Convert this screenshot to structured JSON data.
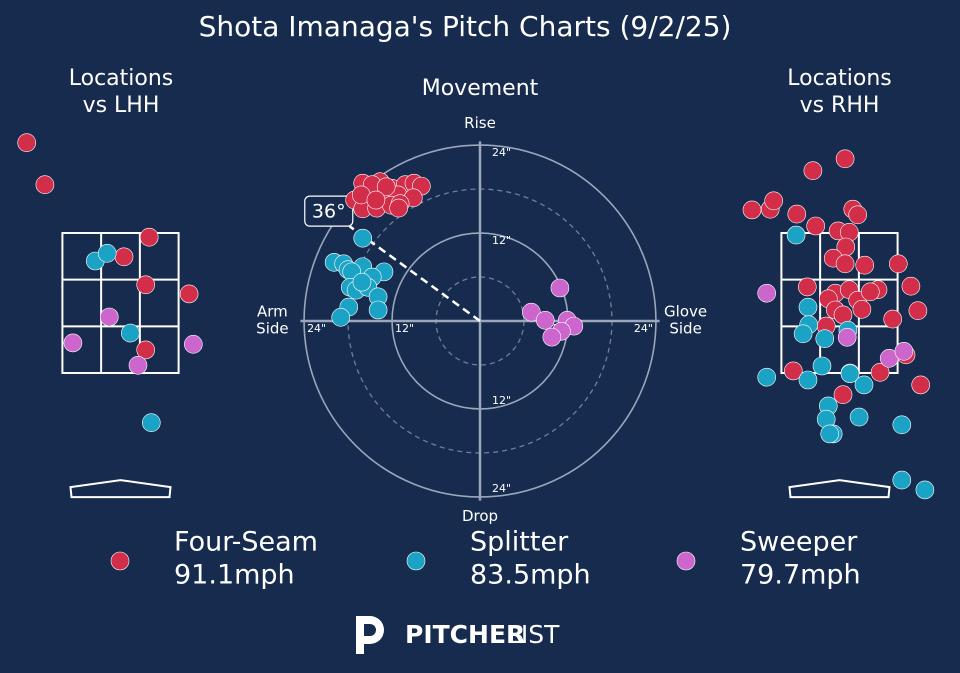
{
  "title": "Shota Imanaga's Pitch Charts (9/2/25)",
  "legend": [
    {
      "name": "Four-Seam",
      "speed": "91.1mph",
      "color": "#d22d49"
    },
    {
      "name": "Splitter",
      "speed": "83.5mph",
      "color": "#1ba3c6"
    },
    {
      "name": "Sweeper",
      "speed": "79.7mph",
      "color": "#cc66cc"
    }
  ],
  "logo": {
    "bold": "PITCHER",
    "light": "LIST"
  },
  "chart_data": [
    {
      "type": "scatter",
      "title": [
        "Locations",
        "vs LHH"
      ],
      "xlim": [
        -1.7,
        1.7
      ],
      "ylim": [
        -0.5,
        5
      ],
      "series": [
        {
          "x": [
            -1.34,
            -1.08,
            0.41,
            0.05,
            0.36,
            0.98,
            0.36
          ],
          "values": [
            4.79,
            4.19,
            3.44,
            3.16,
            2.76,
            2.63,
            1.83
          ]
        },
        {
          "x": [
            -0.36,
            -0.19,
            0.14,
            0.44
          ],
          "values": [
            3.1,
            3.21,
            2.07,
            0.79
          ]
        },
        {
          "x": [
            -0.16,
            -0.68,
            1.04,
            0.25
          ],
          "values": [
            2.3,
            1.93,
            1.91,
            1.61
          ]
        }
      ]
    },
    {
      "type": "movement",
      "title": [
        "Movement"
      ],
      "xlim": [
        -24.5,
        24.5
      ],
      "ylim": [
        -24.5,
        24.5
      ],
      "axis_labels": {
        "top": [
          "Rise"
        ],
        "bottom": [
          "Drop"
        ],
        "left": [
          "Arm",
          "Side"
        ],
        "right": [
          "Glove",
          "Side"
        ]
      },
      "ticks": [
        {
          "value": 12,
          "label": "12\""
        },
        {
          "value": 24,
          "label": "24\""
        }
      ],
      "minor_ticks": [
        6,
        18
      ],
      "annotation": {
        "value": 36,
        "label": "36°"
      },
      "series": [
        {
          "x": [
            -16.0,
            -13.6,
            -12.0,
            -10.2,
            -9.0,
            -8.0,
            -17.1,
            -15.3,
            -13.4,
            -11.2,
            -9.1,
            -16.0,
            -14.1,
            -12.1,
            -10.9,
            -14.7,
            -12.8,
            -16.2,
            -14.2,
            -11.1
          ],
          "values": [
            18.8,
            19.0,
            18.1,
            18.6,
            18.8,
            18.4,
            16.5,
            17.1,
            17.6,
            17.2,
            16.8,
            15.3,
            15.4,
            15.8,
            16.0,
            18.6,
            18.3,
            17.2,
            16.5,
            15.4
          ]
        },
        {
          "x": [
            -16.0,
            -19.9,
            -18.6,
            -18.0,
            -16.0,
            -17.5,
            -13.1,
            -14.7,
            -17.7,
            -16.9,
            -15.3,
            -13.9,
            -17.9,
            -19.0,
            -13.9,
            -16.1
          ],
          "values": [
            11.3,
            8.0,
            7.8,
            7.0,
            7.4,
            6.7,
            6.7,
            6.0,
            4.6,
            4.2,
            4.6,
            3.3,
            1.9,
            0.5,
            1.5,
            5.3
          ]
        },
        {
          "x": [
            10.9,
            7.0,
            8.9,
            11.9,
            12.8,
            11.1,
            9.8
          ],
          "values": [
            4.5,
            1.2,
            0.1,
            0.1,
            -0.7,
            -1.4,
            -2.2
          ]
        }
      ]
    },
    {
      "type": "scatter",
      "title": [
        "Locations",
        "vs RHH"
      ],
      "xlim": [
        -1.7,
        1.7
      ],
      "ylim": [
        -0.5,
        5
      ],
      "series": [
        {
          "x": [
            0.08,
            -0.38,
            -1.25,
            -0.99,
            -0.94,
            -0.61,
            0.19,
            0.26,
            -0.34,
            -0.02,
            0.14,
            0.09,
            -0.09,
            0.08,
            0.36,
            0.84,
            1.02,
            1.12,
            0.76,
            -0.46,
            -0.06,
            -0.16,
            0.14,
            0.26,
            0.55,
            0.44,
            0.32,
            -0.06,
            -0.19,
            0.05,
            0.95,
            0.58,
            1.16,
            -0.66,
            0.05,
            0.15
          ],
          "values": [
            4.56,
            4.39,
            3.83,
            3.84,
            3.96,
            3.77,
            3.84,
            3.76,
            3.6,
            3.53,
            3.51,
            3.3,
            3.14,
            3.06,
            3.04,
            3.06,
            2.74,
            2.39,
            2.27,
            2.73,
            2.64,
            2.56,
            2.69,
            2.54,
            2.69,
            2.66,
            2.41,
            2.4,
            2.17,
            2.33,
            1.76,
            1.51,
            1.33,
            1.53,
            1.19,
            1.5
          ]
        },
        {
          "x": [
            -0.62,
            -0.45,
            -0.44,
            -0.52,
            -0.21,
            0.12,
            -0.25,
            -1.04,
            -0.45,
            0.15,
            0.35,
            -0.16,
            -0.19,
            0.28,
            -0.09,
            -0.14,
            0.89,
            0.89,
            1.22
          ],
          "values": [
            3.47,
            2.44,
            2.19,
            2.06,
            1.99,
            2.11,
            1.6,
            1.44,
            1.4,
            1.49,
            1.33,
            1.03,
            0.84,
            0.87,
            0.63,
            0.63,
            0.76,
            -0.03,
            -0.17
          ]
        },
        {
          "x": [
            -1.04,
            0.11,
            0.71,
            0.92
          ],
          "values": [
            2.64,
            2.01,
            1.71,
            1.81
          ]
        }
      ]
    }
  ]
}
